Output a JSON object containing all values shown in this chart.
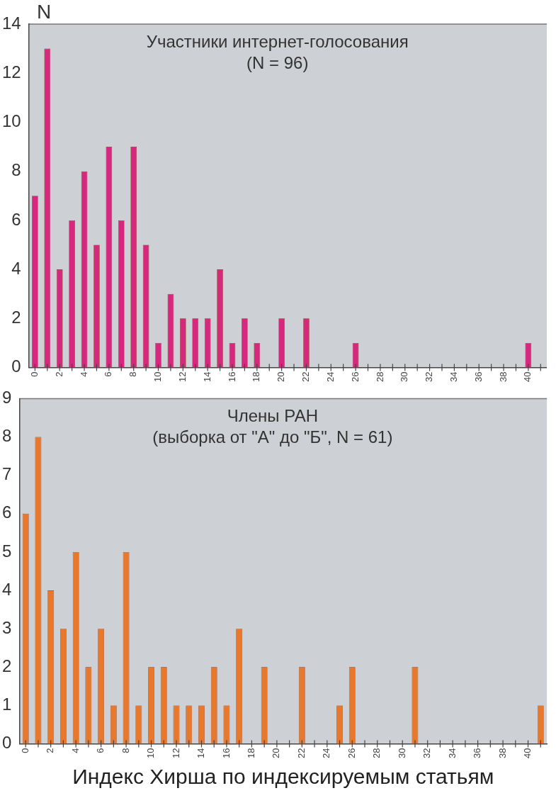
{
  "chart_data": [
    {
      "type": "bar",
      "title": "Участники интернет-голосования\n(N = 96)",
      "ylabel": "N",
      "categories": [
        "0",
        null,
        "2",
        null,
        "4",
        null,
        "6",
        null,
        "8",
        null,
        "10",
        null,
        "12",
        null,
        "14",
        null,
        "16",
        null,
        "18",
        null,
        "20",
        null,
        "22",
        null,
        "24",
        null,
        "26",
        null,
        "28",
        null,
        "30",
        null,
        "32",
        null,
        "34",
        null,
        "36",
        null,
        "38",
        null,
        "40",
        null
      ],
      "values": [
        7,
        13,
        4,
        6,
        8,
        5,
        9,
        6,
        9,
        5,
        1,
        3,
        2,
        2,
        2,
        4,
        1,
        2,
        1,
        0,
        2,
        0,
        2,
        0,
        0,
        0,
        1,
        0,
        0,
        0,
        0,
        0,
        0,
        0,
        0,
        0,
        0,
        0,
        0,
        0,
        1,
        0
      ],
      "color": "#d6287c",
      "ylim": [
        0,
        14
      ],
      "yticks": [
        0,
        2,
        4,
        6,
        8,
        10,
        12,
        14
      ],
      "grid": false
    },
    {
      "type": "bar",
      "title": "Члены РАН\n(выборка от \"А\" до \"Б\", N = 61)",
      "xlabel": "Индекс Хирша по индексируемым статьям",
      "categories": [
        "0",
        null,
        "2",
        null,
        "4",
        null,
        "6",
        null,
        "8",
        null,
        "10",
        null,
        "12",
        null,
        "14",
        null,
        "16",
        null,
        "18",
        null,
        "20",
        null,
        "22",
        null,
        "24",
        null,
        "26",
        null,
        "28",
        null,
        "30",
        null,
        "32",
        null,
        "34",
        null,
        "36",
        null,
        "38",
        null,
        "40",
        null
      ],
      "values": [
        6,
        8,
        4,
        3,
        5,
        2,
        3,
        1,
        5,
        1,
        2,
        2,
        1,
        1,
        1,
        2,
        1,
        3,
        0,
        2,
        0,
        0,
        2,
        0,
        0,
        1,
        2,
        0,
        0,
        0,
        0,
        2,
        0,
        0,
        0,
        0,
        0,
        0,
        0,
        0,
        0,
        1
      ],
      "color": "#e8782c",
      "ylim": [
        0,
        9
      ],
      "yticks": [
        0,
        1,
        2,
        3,
        4,
        5,
        6,
        7,
        8,
        9
      ],
      "grid": false
    }
  ]
}
